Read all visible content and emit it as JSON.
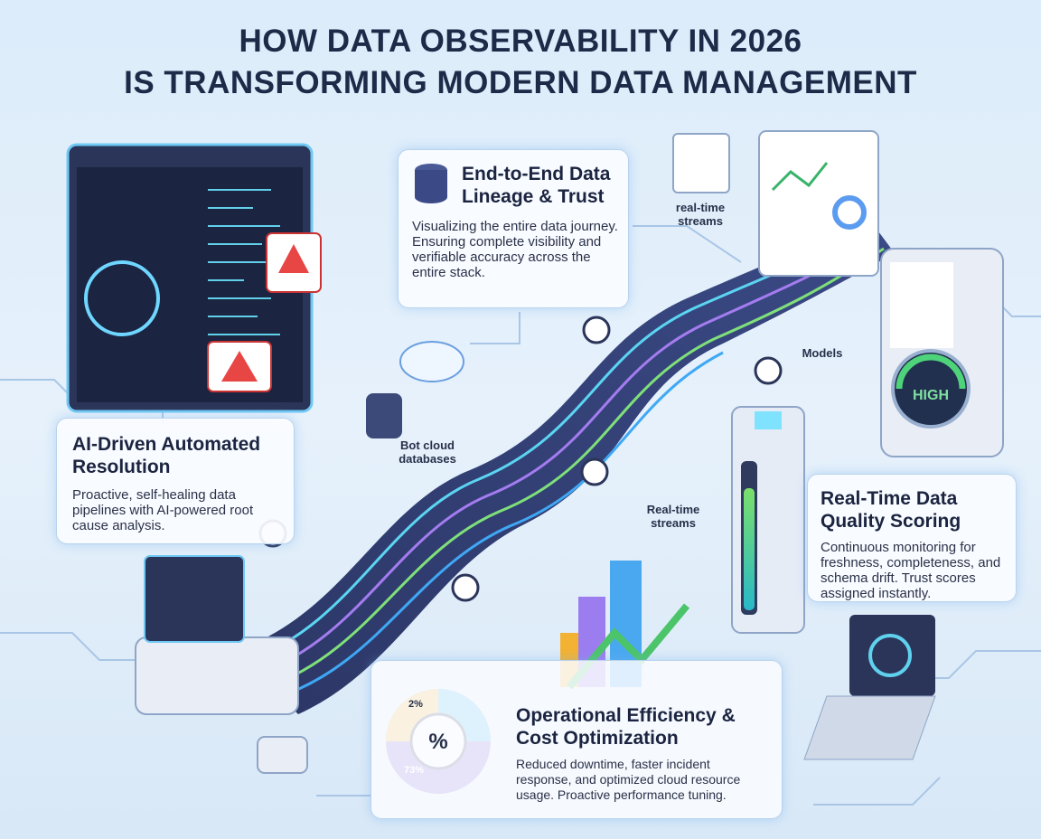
{
  "title": {
    "line1": "HOW DATA OBSERVABILITY IN 2026",
    "line2": "IS TRANSFORMING MODERN DATA MANAGEMENT"
  },
  "cards": [
    {
      "title": "End-to-End Data Lineage & Trust",
      "body": "Visualizing the entire data journey. Ensuring complete visibility and verifiable accuracy across the entire stack."
    },
    {
      "title": "AI-Driven Automated Resolution",
      "body": "Proactive, self-healing data pipelines with AI-powered root cause analysis."
    },
    {
      "title": "Real-Time Data Quality Scoring",
      "body": "Continuous monitoring for freshness, completeness, and schema drift. Trust scores assigned instantly."
    },
    {
      "title": "Operational Efficiency & Cost Optimization",
      "body": "Reduced downtime, faster incident response, and optimized cloud resource usage. Proactive performance tuning."
    }
  ],
  "labels": {
    "streams_top": "real-time streams",
    "models": "Models",
    "gauge": "HIGH",
    "bot_cloud": "Bot cloud databases",
    "streams_mid": "Real-time streams",
    "pie_small": "2%",
    "pie_large": "73%",
    "pie_center": "%"
  }
}
